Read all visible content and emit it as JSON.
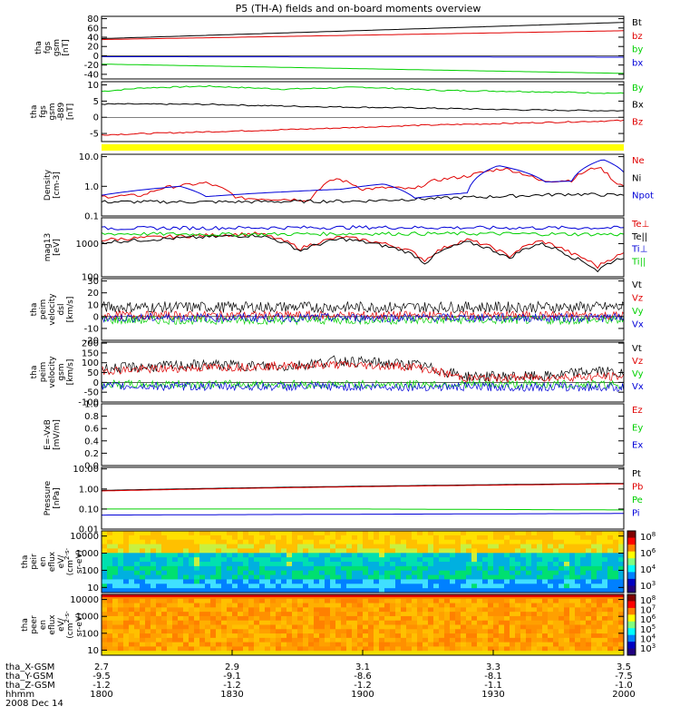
{
  "title": "P5 (TH-A) fields and on-board moments overview",
  "colors": {
    "black": "#000000",
    "red": "#e00000",
    "green": "#00d000",
    "blue": "#0000d8",
    "yellow": "#ffff00"
  },
  "chart_data": [
    {
      "type": "line",
      "ylabel_lines": [
        "tha",
        "fgs",
        "gsm",
        "[nT]"
      ],
      "ylim": [
        -50,
        85
      ],
      "yticks": [
        80,
        60,
        40,
        20,
        0,
        -20,
        -40
      ],
      "series": [
        {
          "name": "Bt",
          "color": "black",
          "values": [
            [
              0,
              37
            ],
            [
              1,
              72
            ]
          ]
        },
        {
          "name": "bz",
          "color": "red",
          "values": [
            [
              0,
              35
            ],
            [
              1,
              54
            ]
          ]
        },
        {
          "name": "by",
          "color": "green",
          "values": [
            [
              0,
              -18
            ],
            [
              1,
              -38
            ]
          ]
        },
        {
          "name": "bx",
          "color": "blue",
          "values": [
            [
              0,
              -2
            ],
            [
              1,
              -3
            ]
          ]
        }
      ]
    },
    {
      "type": "line",
      "ylabel_lines": [
        "tha",
        "fgs",
        "gsm",
        "-B89",
        "[nT]"
      ],
      "ylim": [
        -7.5,
        11
      ],
      "yticks": [
        10,
        5,
        0,
        -5
      ],
      "series": [
        {
          "name": "By",
          "color": "green",
          "values": [
            [
              0,
              8.0
            ],
            [
              0.08,
              9.1
            ],
            [
              0.2,
              9.6
            ],
            [
              0.35,
              8.7
            ],
            [
              0.5,
              9.3
            ],
            [
              0.65,
              8.3
            ],
            [
              0.8,
              8.0
            ],
            [
              1,
              7.4
            ]
          ]
        },
        {
          "name": "Bx",
          "color": "black",
          "values": [
            [
              0,
              4.1
            ],
            [
              0.2,
              4.0
            ],
            [
              0.4,
              3.3
            ],
            [
              0.6,
              2.9
            ],
            [
              0.8,
              2.3
            ],
            [
              1,
              2.0
            ]
          ]
        },
        {
          "name": "Bz",
          "color": "red",
          "values": [
            [
              0,
              -5.4
            ],
            [
              0.2,
              -4.5
            ],
            [
              0.4,
              -3.6
            ],
            [
              0.6,
              -2.5
            ],
            [
              0.8,
              -1.8
            ],
            [
              1,
              -1.0
            ]
          ]
        }
      ]
    },
    {
      "type": "line",
      "scale": "log",
      "ylabel_lines": [
        "Density",
        "[cm-3]"
      ],
      "ylim": [
        0.1,
        12
      ],
      "yticks": [
        10.0,
        1.0,
        0.1
      ],
      "series": [
        {
          "name": "Ne",
          "color": "red",
          "values": [
            [
              0,
              0.45
            ],
            [
              0.08,
              0.5
            ],
            [
              0.12,
              0.9
            ],
            [
              0.2,
              1.3
            ],
            [
              0.26,
              0.4
            ],
            [
              0.4,
              0.35
            ],
            [
              0.45,
              1.8
            ],
            [
              0.5,
              0.8
            ],
            [
              0.55,
              0.9
            ],
            [
              0.6,
              0.8
            ],
            [
              0.64,
              1.6
            ],
            [
              0.7,
              2.2
            ],
            [
              0.77,
              4.0
            ],
            [
              0.84,
              1.5
            ],
            [
              0.9,
              1.6
            ],
            [
              0.95,
              4.5
            ],
            [
              0.98,
              1.5
            ],
            [
              1,
              1.0
            ]
          ]
        },
        {
          "name": "Ni",
          "color": "black",
          "values": [
            [
              0,
              0.3
            ],
            [
              0.25,
              0.3
            ],
            [
              0.5,
              0.32
            ],
            [
              0.75,
              0.45
            ],
            [
              0.9,
              0.55
            ],
            [
              1,
              0.5
            ]
          ]
        },
        {
          "name": "Npot",
          "color": "blue",
          "values": [
            [
              0,
              0.5
            ],
            [
              0.15,
              1.0
            ],
            [
              0.2,
              0.45
            ],
            [
              0.46,
              0.8
            ],
            [
              0.54,
              1.2
            ],
            [
              0.6,
              0.4
            ],
            [
              0.7,
              0.6
            ],
            [
              0.76,
              5.0
            ],
            [
              0.85,
              1.4
            ],
            [
              0.9,
              1.5
            ],
            [
              0.96,
              8.0
            ],
            [
              1,
              3.0
            ]
          ]
        }
      ]
    },
    {
      "type": "line",
      "scale": "log",
      "ylabel_lines": [
        "mag13",
        "[eV]"
      ],
      "ylim": [
        100,
        6000
      ],
      "yticks": [
        1000,
        100
      ],
      "series": [
        {
          "name": "Te⊥",
          "color": "red",
          "values": [
            [
              0,
              1300
            ],
            [
              0.12,
              1600
            ],
            [
              0.3,
              2000
            ],
            [
              0.38,
              700
            ],
            [
              0.46,
              1600
            ],
            [
              0.58,
              700
            ],
            [
              0.62,
              300
            ],
            [
              0.7,
              1300
            ],
            [
              0.78,
              400
            ],
            [
              0.84,
              1200
            ],
            [
              0.9,
              500
            ],
            [
              0.95,
              200
            ],
            [
              1,
              500
            ]
          ]
        },
        {
          "name": "Te||",
          "color": "black",
          "values": [
            [
              0,
              1100
            ],
            [
              0.12,
              1400
            ],
            [
              0.3,
              1800
            ],
            [
              0.38,
              600
            ],
            [
              0.46,
              1400
            ],
            [
              0.58,
              600
            ],
            [
              0.62,
              250
            ],
            [
              0.7,
              1100
            ],
            [
              0.78,
              350
            ],
            [
              0.84,
              1000
            ],
            [
              0.9,
              400
            ],
            [
              0.95,
              150
            ],
            [
              1,
              400
            ]
          ]
        },
        {
          "name": "Ti⊥",
          "color": "blue",
          "values": [
            [
              0,
              2900
            ],
            [
              0.25,
              3000
            ],
            [
              0.5,
              3100
            ],
            [
              0.75,
              3000
            ],
            [
              1,
              3000
            ]
          ]
        },
        {
          "name": "Ti||",
          "color": "green",
          "values": [
            [
              0,
              2000
            ],
            [
              0.25,
              1900
            ],
            [
              0.5,
              2000
            ],
            [
              0.75,
              2000
            ],
            [
              1,
              1900
            ]
          ]
        }
      ]
    },
    {
      "type": "line",
      "noisy": true,
      "ylabel_lines": [
        "tha",
        "peim",
        "velocity",
        "dsl",
        "[km/s]"
      ],
      "ylim": [
        -20,
        32
      ],
      "yticks": [
        30,
        20,
        10,
        0,
        -10,
        -20
      ],
      "series": [
        {
          "name": "Vt",
          "color": "black",
          "values": [
            [
              0,
              8
            ],
            [
              1,
              8
            ]
          ]
        },
        {
          "name": "Vz",
          "color": "red",
          "values": [
            [
              0,
              1
            ],
            [
              1,
              1
            ]
          ]
        },
        {
          "name": "Vy",
          "color": "green",
          "values": [
            [
              0,
              -3
            ],
            [
              1,
              -3
            ]
          ]
        },
        {
          "name": "Vx",
          "color": "blue",
          "values": [
            [
              0,
              -1
            ],
            [
              1,
              -1
            ]
          ]
        }
      ]
    },
    {
      "type": "line",
      "noisy": true,
      "ylabel_lines": [
        "tha",
        "peim",
        "velocity",
        "gsm",
        "[km/s]"
      ],
      "ylim": [
        -100,
        205
      ],
      "yticks": [
        200,
        150,
        100,
        50,
        0,
        -50,
        -100
      ],
      "series": [
        {
          "name": "Vt",
          "color": "black",
          "values": [
            [
              0,
              70
            ],
            [
              0.2,
              90
            ],
            [
              0.35,
              80
            ],
            [
              0.45,
              110
            ],
            [
              0.6,
              90
            ],
            [
              0.7,
              30
            ],
            [
              0.85,
              30
            ],
            [
              0.95,
              60
            ],
            [
              1,
              40
            ]
          ]
        },
        {
          "name": "Vz",
          "color": "red",
          "values": [
            [
              0,
              60
            ],
            [
              0.2,
              75
            ],
            [
              0.45,
              90
            ],
            [
              0.6,
              80
            ],
            [
              0.7,
              20
            ],
            [
              1,
              30
            ]
          ]
        },
        {
          "name": "Vy",
          "color": "green",
          "values": [
            [
              0,
              -10
            ],
            [
              1,
              -10
            ]
          ]
        },
        {
          "name": "Vx",
          "color": "blue",
          "values": [
            [
              0,
              -20
            ],
            [
              1,
              -25
            ]
          ]
        }
      ]
    },
    {
      "type": "line",
      "ylabel_lines": [
        "E=-VxB",
        "[mV/m]"
      ],
      "ylim": [
        0.0,
        1.0
      ],
      "yticks": [
        1.0,
        0.8,
        0.6,
        0.4,
        0.2,
        0.0
      ],
      "series": [
        {
          "name": "Ez",
          "color": "red",
          "values": []
        },
        {
          "name": "Ey",
          "color": "green",
          "values": []
        },
        {
          "name": "Ex",
          "color": "blue",
          "values": []
        }
      ]
    },
    {
      "type": "line",
      "scale": "log",
      "ylabel_lines": [
        "Pressure",
        "[nPa]"
      ],
      "ylim": [
        0.01,
        12
      ],
      "yticks": [
        10.0,
        1.0,
        0.1,
        0.01
      ],
      "series": [
        {
          "name": "Pt",
          "color": "black",
          "values": [
            [
              0,
              0.85
            ],
            [
              1,
              1.9
            ]
          ]
        },
        {
          "name": "Pb",
          "color": "red",
          "values": [
            [
              0,
              0.8
            ],
            [
              1,
              1.8
            ]
          ]
        },
        {
          "name": "Pe",
          "color": "green",
          "values": [
            [
              0,
              0.1
            ],
            [
              0.5,
              0.1
            ],
            [
              1,
              0.09
            ]
          ]
        },
        {
          "name": "Pi",
          "color": "blue",
          "values": [
            [
              0,
              0.05
            ],
            [
              1,
              0.06
            ]
          ]
        }
      ]
    },
    {
      "type": "heatmap",
      "ylabel_lines": [
        "tha",
        "peir",
        "en",
        "eflux",
        "eV/",
        "(cm^2-s-",
        "sr-eV)"
      ],
      "ylim": [
        5,
        20000
      ],
      "yticks": [
        10000,
        1000,
        100,
        10
      ],
      "colorbar_ticks": [
        "10^8",
        "10^6",
        "10^4",
        "10^3"
      ]
    },
    {
      "type": "heatmap",
      "ylabel_lines": [
        "tha",
        "peer",
        "en",
        "eflux",
        "eV/",
        "(cm^2-s-",
        "sr-eV)"
      ],
      "ylim": [
        5,
        20000
      ],
      "yticks": [
        10000,
        1000,
        100,
        10
      ],
      "colorbar_ticks": [
        "10^8",
        "10^7",
        "10^6",
        "10^5",
        "10^4",
        "10^3"
      ]
    }
  ],
  "footer": {
    "rows": [
      {
        "label": "tha_X-GSM",
        "values": [
          "2.7",
          "2.9",
          "3.1",
          "3.3",
          "3.5"
        ]
      },
      {
        "label": "tha_Y-GSM",
        "values": [
          "-9.5",
          "-9.1",
          "-8.6",
          "-8.1",
          "-7.5"
        ]
      },
      {
        "label": "tha_Z-GSM",
        "values": [
          "-1.2",
          "-1.2",
          "-1.2",
          "-1.1",
          "-1.0"
        ]
      },
      {
        "label": "hhmm",
        "values": [
          "1800",
          "1830",
          "1900",
          "1930",
          "2000"
        ]
      }
    ],
    "date": "2008 Dec 14"
  }
}
